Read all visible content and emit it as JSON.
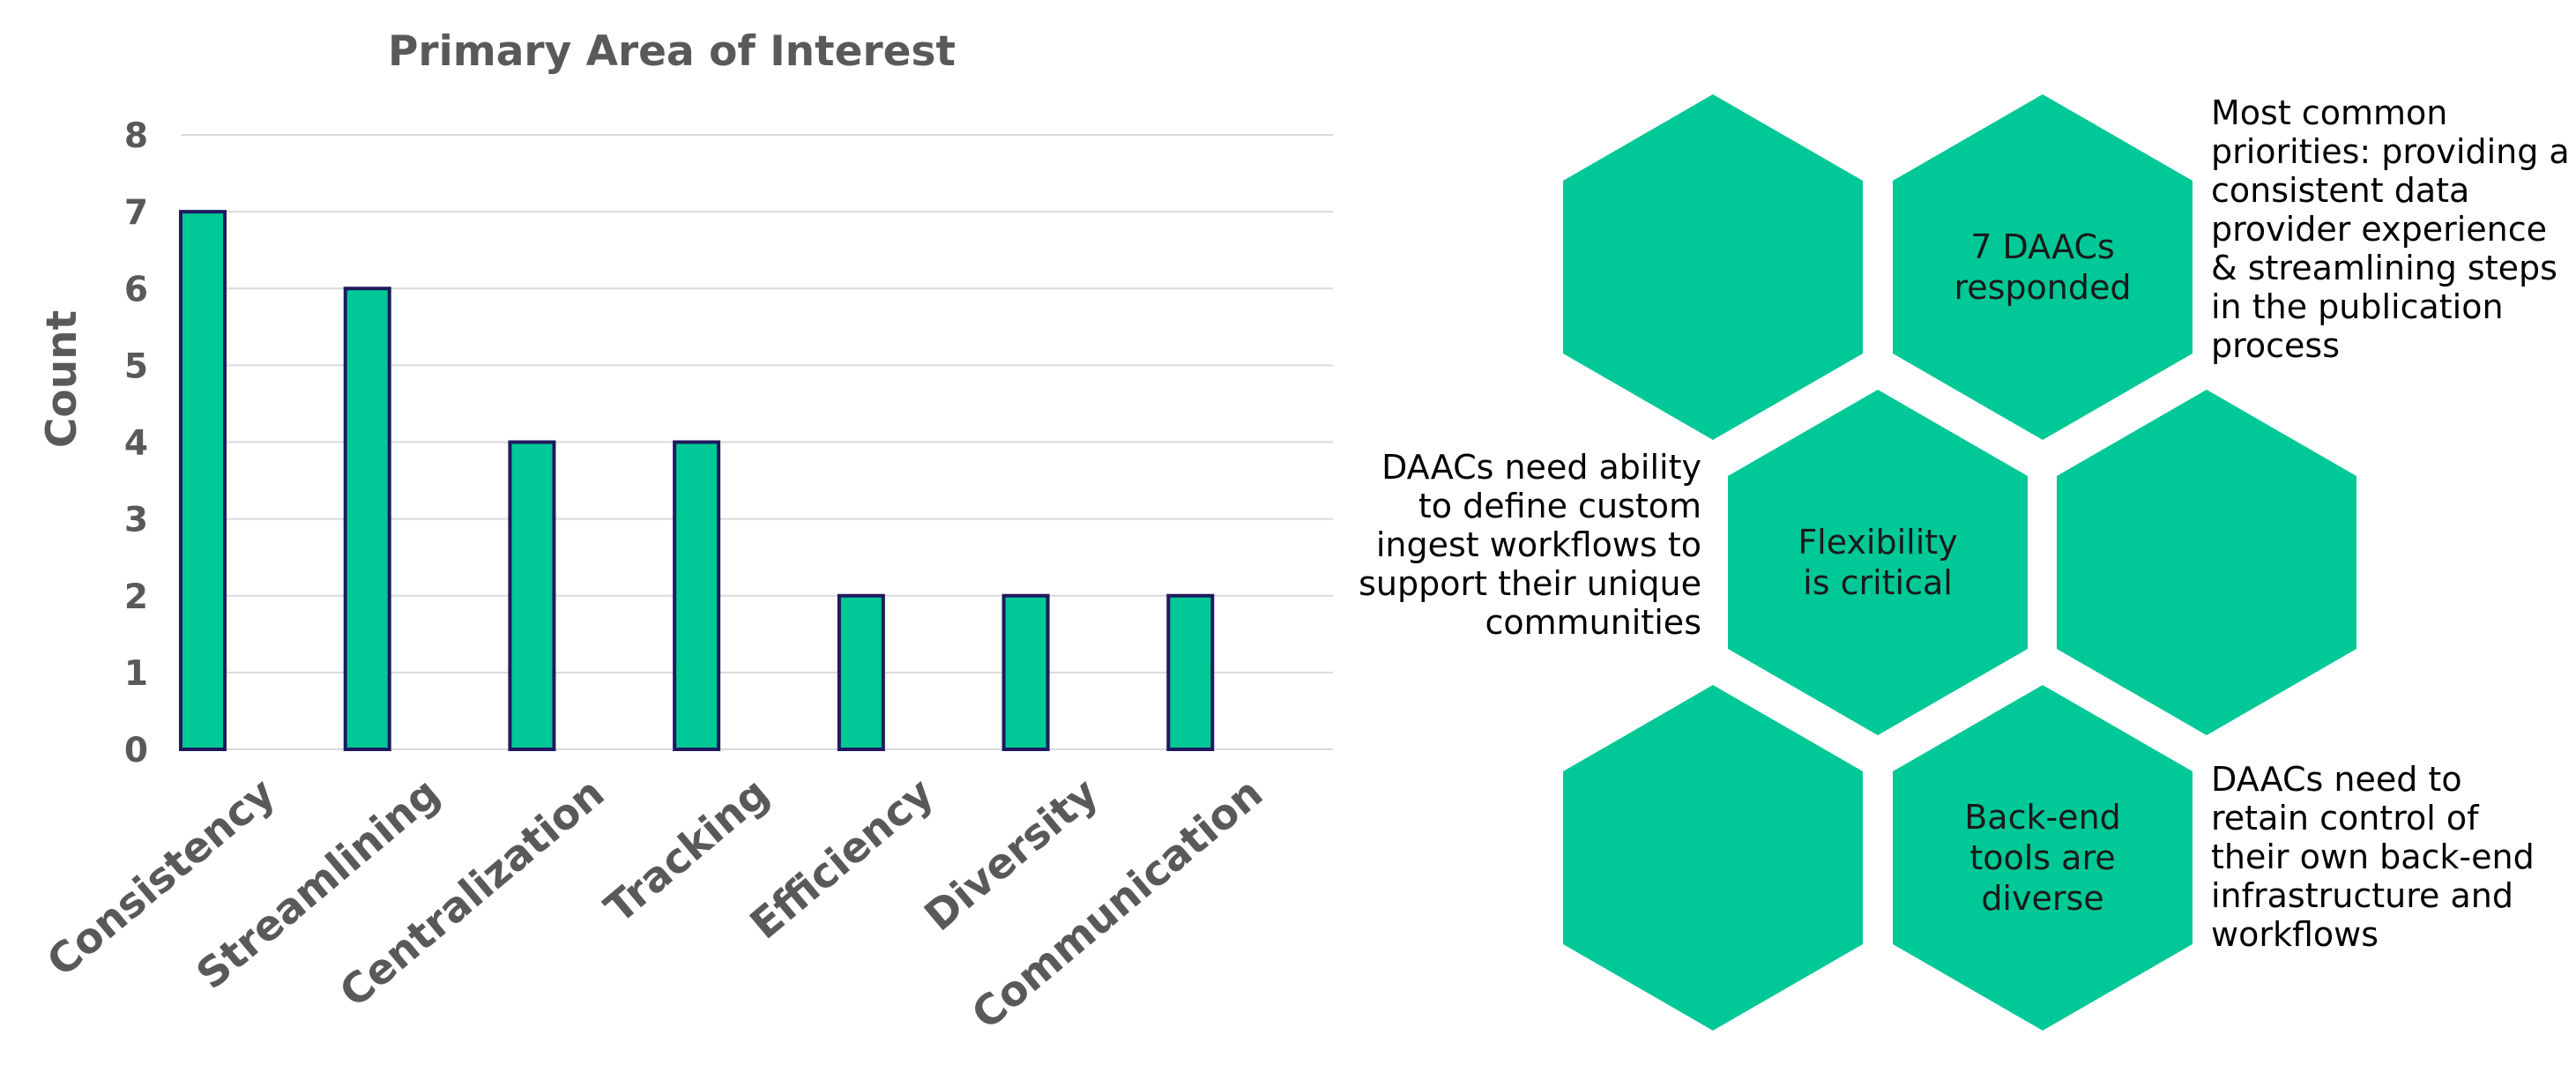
{
  "chart_data": {
    "type": "bar",
    "title": "Primary Area of Interest",
    "xlabel": "",
    "ylabel": "Count",
    "categories": [
      "Consistency",
      "Streamlining",
      "Centralization",
      "Tracking",
      "Efficiency",
      "Diversity",
      "Communication"
    ],
    "values": [
      7,
      6,
      4,
      4,
      2,
      2,
      2
    ],
    "ylim": [
      0,
      8
    ],
    "yticks": [
      "0",
      "1",
      "2",
      "3",
      "4",
      "5",
      "6",
      "7",
      "8"
    ],
    "grid": true,
    "legend": "none",
    "bar_color": "#00c896",
    "bar_edge_color": "#1f1a5e"
  },
  "infographic": {
    "hex_color": "#00c896",
    "hexes": [
      {
        "lines": []
      },
      {
        "lines": [
          "7 DAACs",
          "responded"
        ]
      },
      {
        "lines": [
          "Flexibility",
          "is critical"
        ]
      },
      {
        "lines": []
      },
      {
        "lines": []
      },
      {
        "lines": [
          "Back-end",
          "tools are",
          "diverse"
        ]
      }
    ],
    "notes": {
      "top_right": "Most common priorities: providing a consistent data provider experience & streamlining steps in the publication process",
      "middle_left": "DAACs need ability to define custom ingest workflows to support their unique communities",
      "bottom_right": "DAACs need to retain control of their own back-end infrastructure and workflows"
    }
  }
}
